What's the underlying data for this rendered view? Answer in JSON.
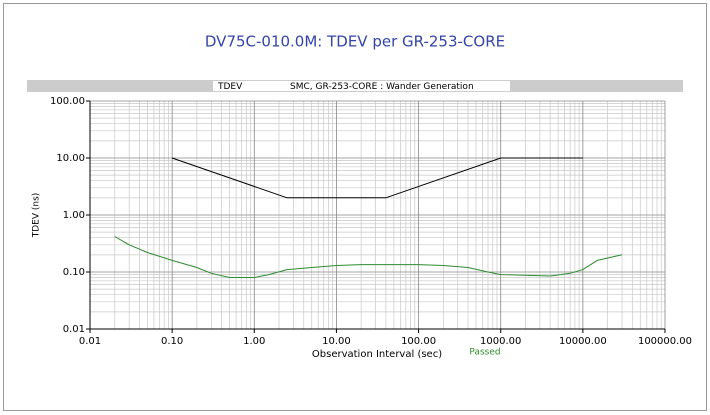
{
  "chart_data": {
    "type": "line",
    "title": "DV75C-010.0M:  TDEV  per GR-253-CORE",
    "panel_label": "TDEV",
    "subtitle": "SMC, GR-253-CORE : Wander Generation",
    "xlabel": "Observation Interval (sec)",
    "ylabel": "TDEV (ns)",
    "annotation": "Passed",
    "xscale": "log",
    "yscale": "log",
    "grid": true,
    "xlim": [
      0.01,
      100000
    ],
    "ylim": [
      0.01,
      100
    ],
    "xticks": [
      {
        "value": 0.01,
        "label": "0.01"
      },
      {
        "value": 0.1,
        "label": "0.10"
      },
      {
        "value": 1,
        "label": "1.00"
      },
      {
        "value": 10,
        "label": "10.00"
      },
      {
        "value": 100,
        "label": "100.00"
      },
      {
        "value": 1000,
        "label": "1000.00"
      },
      {
        "value": 10000,
        "label": "10000.00"
      },
      {
        "value": 100000,
        "label": "100000.00"
      }
    ],
    "yticks": [
      {
        "value": 0.01,
        "label": "0.01"
      },
      {
        "value": 0.1,
        "label": "0.10"
      },
      {
        "value": 1,
        "label": "1.00"
      },
      {
        "value": 10,
        "label": "10.00"
      },
      {
        "value": 100,
        "label": "100.00"
      }
    ],
    "series": [
      {
        "color": "#000000",
        "x": [
          0.1,
          2.5,
          40,
          1000,
          10000
        ],
        "values": [
          10,
          2,
          2,
          10,
          10
        ]
      },
      {
        "color": "#2e8b2e",
        "x": [
          0.02,
          0.03,
          0.05,
          0.1,
          0.2,
          0.3,
          0.5,
          1,
          1.5,
          2.5,
          5,
          10,
          20,
          50,
          100,
          200,
          400,
          700,
          1000,
          2000,
          4000,
          7000,
          10000,
          15000,
          30000
        ],
        "values": [
          0.42,
          0.3,
          0.22,
          0.16,
          0.12,
          0.095,
          0.08,
          0.08,
          0.09,
          0.11,
          0.12,
          0.13,
          0.135,
          0.135,
          0.135,
          0.13,
          0.12,
          0.1,
          0.09,
          0.088,
          0.085,
          0.095,
          0.11,
          0.16,
          0.2
        ]
      }
    ]
  }
}
